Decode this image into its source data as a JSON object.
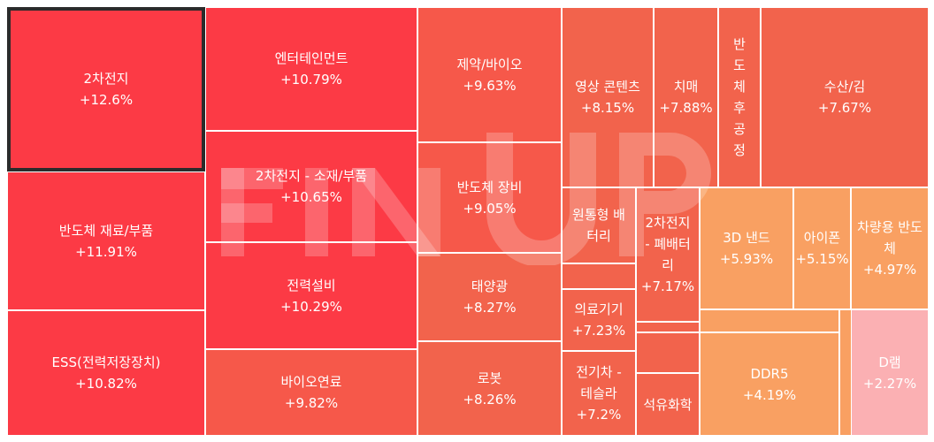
{
  "watermark": "FINUP",
  "tiles": [
    {
      "name": "2차전지",
      "change": "+12.6%"
    },
    {
      "name": "반도체 재료/부품",
      "change": "+11.91%"
    },
    {
      "name": "ESS(전력저장장치)",
      "change": "+10.82%"
    },
    {
      "name": "엔터테인먼트",
      "change": "+10.79%"
    },
    {
      "name": "2차전지 - 소재/부품",
      "change": "+10.65%"
    },
    {
      "name": "전력설비",
      "change": "+10.29%"
    },
    {
      "name": "바이오연료",
      "change": "+9.82%"
    },
    {
      "name": "제약/바이오",
      "change": "+9.63%"
    },
    {
      "name": "반도체 장비",
      "change": "+9.05%"
    },
    {
      "name": "태양광",
      "change": "+8.27%"
    },
    {
      "name": "로봇",
      "change": "+8.26%"
    },
    {
      "name": "영상 콘텐츠",
      "change": "+8.15%"
    },
    {
      "name": "치매",
      "change": "+7.88%"
    },
    {
      "name": "반도체 후공정",
      "change": ""
    },
    {
      "name": "수산/김",
      "change": "+7.67%"
    },
    {
      "name": "원통형 배터리",
      "change": ""
    },
    {
      "name": "2차전지 - 폐배터리",
      "change": "+7.17%"
    },
    {
      "name": "의료기기",
      "change": "+7.23%"
    },
    {
      "name": "전기차 - 테슬라",
      "change": "+7.2%"
    },
    {
      "name": "석유화학",
      "change": ""
    },
    {
      "name": "3D 낸드",
      "change": "+5.93%"
    },
    {
      "name": "아이폰",
      "change": "+5.15%"
    },
    {
      "name": "차량용 반도체",
      "change": "+4.97%"
    },
    {
      "name": "DDR5",
      "change": "+4.19%"
    },
    {
      "name": "D램",
      "change": "+2.27%"
    },
    {
      "name": "",
      "change": ""
    },
    {
      "name": "",
      "change": ""
    },
    {
      "name": "",
      "change": ""
    },
    {
      "name": "",
      "change": ""
    },
    {
      "name": "",
      "change": ""
    }
  ]
}
